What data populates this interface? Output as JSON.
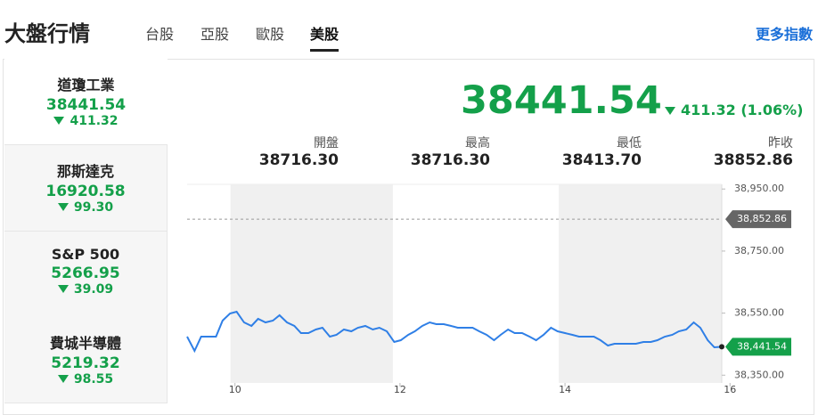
{
  "header": {
    "title": "大盤行情",
    "tabs": [
      "台股",
      "亞股",
      "歐股",
      "美股"
    ],
    "more": "更多指數"
  },
  "sidebar": [
    {
      "name": "道瓊工業",
      "value": "38441.54",
      "change": "411.32"
    },
    {
      "name": "那斯達克",
      "value": "16920.58",
      "change": "99.30"
    },
    {
      "name": "S&P 500",
      "value": "5266.95",
      "change": "39.09"
    },
    {
      "name": "費城半導體",
      "value": "5219.32",
      "change": "98.55"
    }
  ],
  "summary": {
    "value": "38441.54",
    "change": "411.32 (1.06%)",
    "stats": [
      {
        "label": "開盤",
        "value": "38716.30"
      },
      {
        "label": "最高",
        "value": "38716.30"
      },
      {
        "label": "最低",
        "value": "38413.70"
      },
      {
        "label": "昨收",
        "value": "38852.86"
      }
    ]
  },
  "chart_data": {
    "type": "line",
    "x": [
      9.42,
      9.51,
      9.59,
      9.68,
      9.77,
      9.85,
      9.94,
      10.02,
      10.11,
      10.2,
      10.28,
      10.37,
      10.46,
      10.54,
      10.63,
      10.72,
      10.8,
      10.89,
      10.98,
      11.06,
      11.15,
      11.23,
      11.32,
      11.41,
      11.49,
      11.58,
      11.67,
      11.75,
      11.84,
      11.93,
      12.01,
      12.1,
      12.18,
      12.27,
      12.36,
      12.44,
      12.53,
      12.62,
      12.7,
      12.79,
      12.88,
      12.96,
      13.05,
      13.14,
      13.22,
      13.31,
      13.39,
      13.48,
      13.57,
      13.65,
      13.74,
      13.83,
      13.91,
      14.0,
      14.09,
      14.17,
      14.26,
      14.35,
      14.43,
      14.52,
      14.6,
      14.69,
      14.78,
      14.86,
      14.95,
      15.04,
      15.12,
      15.21,
      15.3,
      15.38,
      15.47,
      15.56,
      15.64,
      15.73,
      15.81,
      15.9
    ],
    "series": [
      {
        "color": "#2f7fe6",
        "values": [
          38474.2,
          38428.3,
          38474.2,
          38474.2,
          38474.2,
          38525.9,
          38548.8,
          38554.6,
          38520.1,
          38508.7,
          38531.6,
          38520.1,
          38525.9,
          38543.1,
          38520.1,
          38508.7,
          38485.7,
          38485.7,
          38497.2,
          38502.9,
          38474.2,
          38480.0,
          38497.2,
          38491.4,
          38502.9,
          38508.7,
          38497.2,
          38502.9,
          38491.4,
          38457.0,
          38462.7,
          38480.0,
          38491.4,
          38508.7,
          38520.1,
          38514.4,
          38514.4,
          38508.7,
          38502.9,
          38502.9,
          38502.9,
          38491.4,
          38480.0,
          38462.7,
          38480.0,
          38497.2,
          38485.7,
          38485.7,
          38474.2,
          38462.7,
          38480.0,
          38502.9,
          38491.4,
          38485.7,
          38480.0,
          38474.2,
          38474.2,
          38474.2,
          38462.7,
          38445.5,
          38451.3,
          38451.3,
          38451.3,
          38451.3,
          38457.0,
          38457.0,
          38462.7,
          38474.2,
          38480.0,
          38491.4,
          38497.2,
          38520.1,
          38502.9,
          38462.7,
          38439.8,
          38441.54
        ]
      }
    ],
    "xlim": [
      9.42,
      15.9
    ],
    "xticks": [
      10,
      12,
      14,
      16
    ],
    "ylim": [
      38325,
      38965
    ],
    "yticks": [
      {
        "value": 38950,
        "label": "38,950.00"
      },
      {
        "value": 38750,
        "label": "38,750.00"
      },
      {
        "value": 38550,
        "label": "38,550.00"
      },
      {
        "value": 38350,
        "label": "38,350.00"
      }
    ],
    "annotations": [
      {
        "value": 38852.86,
        "label": "38,852.86",
        "color": "#666666"
      },
      {
        "value": 38441.54,
        "label": "38,441.54",
        "color": "#14a04a"
      }
    ]
  }
}
